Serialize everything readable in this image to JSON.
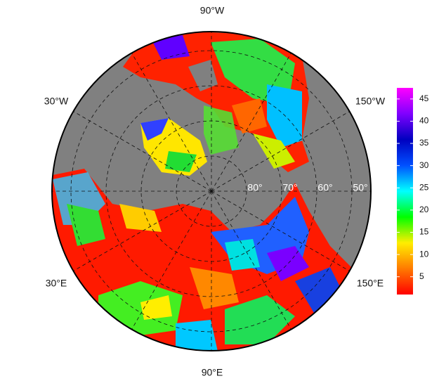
{
  "map": {
    "longitude_labels": [
      "90°W",
      "30°W",
      "150°W",
      "30°E",
      "150°E",
      "90°E"
    ],
    "latitude_labels": [
      "80°",
      "70°",
      "60°",
      "50°"
    ],
    "colorbar": {
      "range": [
        1,
        47.5
      ],
      "ticks": [
        5,
        10,
        15,
        20,
        25,
        30,
        35,
        40,
        45
      ],
      "colors": [
        "#ff0000",
        "#ff7a00",
        "#ffee00",
        "#00ff00",
        "#00ffff",
        "#0050ff",
        "#0000c0",
        "#8000ff",
        "#ff00ff"
      ]
    }
  }
}
